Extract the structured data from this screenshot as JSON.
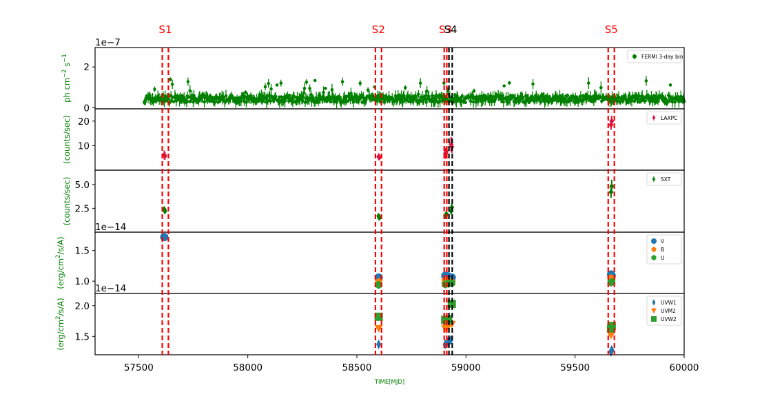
{
  "chart_data": {
    "type": "scatter",
    "xlabel": "TIME[MJD]",
    "xlim": [
      57300,
      60000
    ],
    "x_ticks": [
      "57500",
      "58000",
      "58500",
      "59000",
      "59500",
      "60000"
    ],
    "x_tick_values": [
      57500,
      58000,
      58500,
      59000,
      59500,
      60000
    ],
    "state_markers": [
      {
        "label": "S1",
        "color": "#ff0000",
        "lines": [
          57608,
          57636
        ]
      },
      {
        "label": "S2",
        "color": "#ff0000",
        "lines": [
          58585,
          58613
        ]
      },
      {
        "label": "S3",
        "color": "#ff0000",
        "lines": [
          58900,
          58912
        ]
      },
      {
        "label": "S4",
        "color": "#000000",
        "lines": [
          58922,
          58937
        ]
      },
      {
        "label": "S5",
        "color": "#ff0000",
        "lines": [
          59652,
          59680
        ]
      }
    ],
    "panels": [
      {
        "id": "fermi",
        "ylabel": "ph cm$^{-2}$ s$^{-1}$",
        "ylabel_text": "ph cm",
        "ylabel_sup1": "−2",
        "ylabel_mid": " s",
        "ylabel_sup2": "−1",
        "ylabel_color": "#008000",
        "offset_text": "1e−7",
        "ylim": [
          -0.05,
          2.95
        ],
        "y_ticks": [
          "0",
          "2"
        ],
        "y_tick_values": [
          0,
          2
        ],
        "series": [
          {
            "name": "FERMI 3-day bin",
            "color": "#008000",
            "marker": "circle",
            "x_range": [
              57525,
              60000
            ],
            "step": 3,
            "baseline": 0.4,
            "spread": 0.35
          }
        ]
      },
      {
        "id": "laxpc",
        "ylabel": "(counts/sec)",
        "ylabel_color": "#008000",
        "offset_text": "",
        "ylim": [
          0,
          25
        ],
        "y_ticks": [
          "10",
          "20"
        ],
        "y_tick_values": [
          10,
          20
        ],
        "series": [
          {
            "name": "LAXPC",
            "color": "#dc143c",
            "marker": "diamond",
            "points": [
              [
                57617,
                6.2,
                1.8
              ],
              [
                57620,
                5.8,
                1.6
              ],
              [
                58600,
                5.5,
                1.4
              ],
              [
                58603,
                5.2,
                1.2
              ],
              [
                58906,
                6.8,
                2.2
              ],
              [
                58910,
                7.5,
                2.0
              ],
              [
                58932,
                10.5,
                3.0
              ],
              [
                58935,
                9.5,
                2.5
              ],
              [
                59665,
                18.5,
                2.0
              ],
              [
                59668,
                20.0,
                2.2
              ]
            ]
          }
        ]
      },
      {
        "id": "sxt",
        "ylabel": "(counts/sec)",
        "ylabel_color": "#008000",
        "offset_text": "",
        "ylim": [
          0,
          6.5
        ],
        "y_ticks": [
          "2.5",
          "5.0"
        ],
        "y_tick_values": [
          2.5,
          5.0
        ],
        "series": [
          {
            "name": "SXT",
            "color": "#008000",
            "marker": "diamond",
            "points": [
              [
                57617,
                2.4,
                0.3
              ],
              [
                57620,
                2.2,
                0.3
              ],
              [
                58600,
                1.7,
                0.25
              ],
              [
                58603,
                1.5,
                0.25
              ],
              [
                58906,
                1.7,
                0.3
              ],
              [
                58910,
                1.9,
                0.3
              ],
              [
                58932,
                2.2,
                0.35
              ],
              [
                58935,
                2.6,
                0.4
              ],
              [
                59665,
                4.2,
                0.6
              ],
              [
                59668,
                4.8,
                0.7
              ]
            ]
          }
        ]
      },
      {
        "id": "uvot_optical",
        "ylabel": "(erg/cm$^2$/s/A)",
        "ylabel_text": "(erg/cm",
        "ylabel_sup1": "2",
        "ylabel_mid": "/s/A)",
        "ylabel_color": "#008000",
        "offset_text": "1e−14",
        "ylim": [
          0.8,
          1.8
        ],
        "y_ticks": [
          "1.0",
          "1.5"
        ],
        "y_tick_values": [
          1.0,
          1.5
        ],
        "series": [
          {
            "name": "V",
            "color": "#1f77b4",
            "marker": "circle",
            "points": [
              [
                57617,
                1.72
              ],
              [
                58600,
                1.06
              ],
              [
                58905,
                1.09
              ],
              [
                58918,
                1.08
              ],
              [
                58935,
                1.06
              ],
              [
                59665,
                1.11
              ],
              [
                59668,
                1.09
              ]
            ]
          },
          {
            "name": "B",
            "color": "#ff7f0e",
            "marker": "pentagon",
            "points": [
              [
                58600,
                0.99
              ],
              [
                58905,
                1.01
              ],
              [
                58918,
                1.0
              ],
              [
                58935,
                0.99
              ],
              [
                59665,
                1.05
              ],
              [
                59668,
                1.03
              ]
            ]
          },
          {
            "name": "U",
            "color": "#2ca02c",
            "marker": "hexagon",
            "points": [
              [
                58600,
                0.94
              ],
              [
                58905,
                0.95
              ],
              [
                58918,
                0.96
              ],
              [
                58935,
                0.97
              ],
              [
                59665,
                0.98
              ],
              [
                59668,
                0.99
              ]
            ]
          }
        ]
      },
      {
        "id": "uvot_uv",
        "ylabel": "(erg/cm$^2$/s/A)",
        "ylabel_text": "(erg/cm",
        "ylabel_sup1": "2",
        "ylabel_mid": "/s/A)",
        "ylabel_color": "#008000",
        "offset_text": "1e−14",
        "ylim": [
          1.2,
          2.2
        ],
        "y_ticks": [
          "1.5",
          "2.0"
        ],
        "y_tick_values": [
          1.5,
          2.0
        ],
        "series": [
          {
            "name": "UVW1",
            "color": "#1f77b4",
            "marker": "thin_diamond",
            "points": [
              [
                58600,
                1.37
              ],
              [
                58905,
                1.37
              ],
              [
                58918,
                1.41
              ],
              [
                58930,
                1.44
              ],
              [
                59665,
                1.25
              ],
              [
                59668,
                1.28
              ]
            ]
          },
          {
            "name": "UVM2",
            "color": "#ff7f0e",
            "marker": "triangle_down",
            "points": [
              [
                58600,
                1.63
              ],
              [
                58905,
                1.63
              ],
              [
                58918,
                1.66
              ],
              [
                58935,
                1.7
              ],
              [
                59665,
                1.52
              ],
              [
                59668,
                1.55
              ]
            ]
          },
          {
            "name": "UVW2",
            "color": "#2ca02c",
            "marker": "square",
            "points": [
              [
                58600,
                1.82
              ],
              [
                58905,
                1.77
              ],
              [
                58918,
                1.78
              ],
              [
                58935,
                2.03
              ],
              [
                59665,
                1.63
              ],
              [
                59668,
                1.67
              ]
            ]
          }
        ]
      }
    ]
  }
}
